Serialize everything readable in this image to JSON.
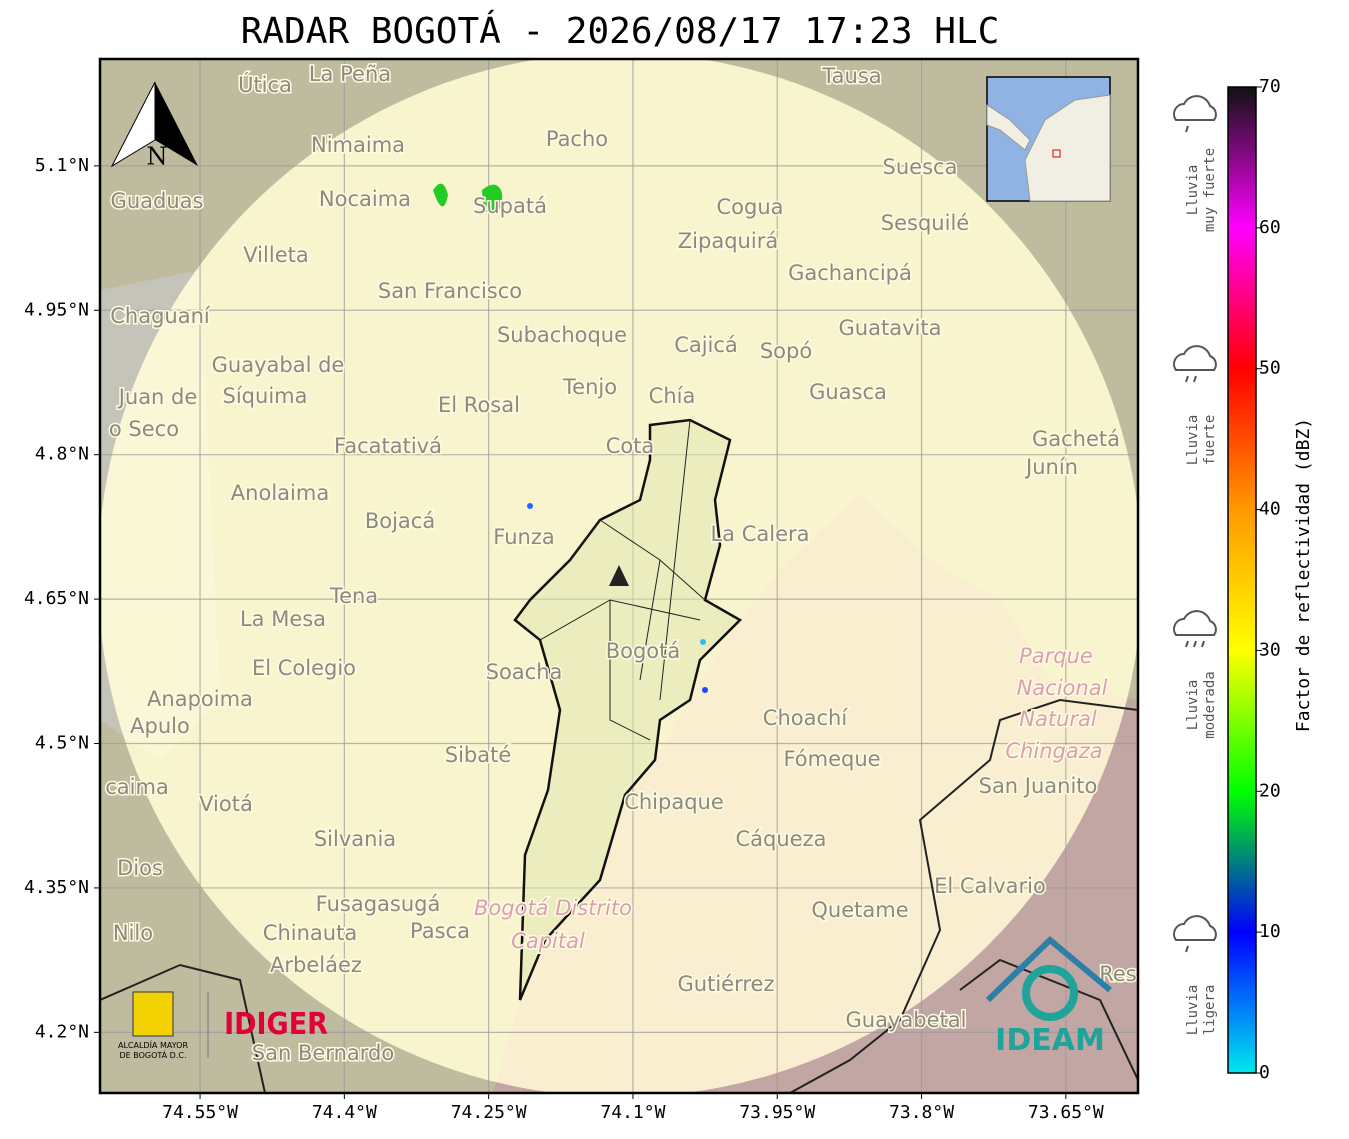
{
  "title": "RADAR BOGOTÁ - 2026/08/17 17:23 HLC",
  "map": {
    "north": "N",
    "xlim": [
      -74.654,
      -73.575
    ],
    "ylim": [
      4.137,
      5.211
    ],
    "xticks": [
      {
        "value": -74.55,
        "label": "74.55°W"
      },
      {
        "value": -74.4,
        "label": "74.4°W"
      },
      {
        "value": -74.25,
        "label": "74.25°W"
      },
      {
        "value": -74.1,
        "label": "74.1°W"
      },
      {
        "value": -73.95,
        "label": "73.95°W"
      },
      {
        "value": -73.8,
        "label": "73.8°W"
      },
      {
        "value": -73.65,
        "label": "73.65°W"
      }
    ],
    "yticks": [
      {
        "value": 5.1,
        "label": "5.1°N"
      },
      {
        "value": 4.95,
        "label": "4.95°N"
      },
      {
        "value": 4.8,
        "label": "4.8°N"
      },
      {
        "value": 4.65,
        "label": "4.65°N"
      },
      {
        "value": 4.5,
        "label": "4.5°N"
      },
      {
        "value": 4.35,
        "label": "4.35°N"
      },
      {
        "value": 4.2,
        "label": "4.2°N"
      }
    ],
    "places": [
      "La Peña",
      "Útica",
      "Tausa",
      "Pacho",
      "Nimaima",
      "Suesca",
      "Guaduas",
      "Nocaima",
      "Supatá",
      "Cogua",
      "Sesquilé",
      "Villeta",
      "Zipaquirá",
      "Gachancipá",
      "San Francisco",
      "Chaguaní",
      "Guatavita",
      "Subachoque",
      "Cajicá",
      "Sopó",
      "Guayabal de",
      "Síquima",
      "Tenjo",
      "Chía",
      "Guasca",
      "Juan de",
      "o Seco",
      "El Rosal",
      "Cota",
      "Gachetá",
      "Facatativá",
      "Junín",
      "Anolaima",
      "Bojacá",
      "Funza",
      "La Calera",
      "Tena",
      "La Mesa",
      "Bogotá",
      "Parque",
      "Nacional",
      "Natural",
      "Chingaza",
      "El Colegio",
      "Soacha",
      "Anapoima",
      "Apulo",
      "Choachí",
      "Sibaté",
      "Fómeque",
      "San Juanito",
      "caima",
      "Viotá",
      "Chipaque",
      "Silvania",
      "Cáqueza",
      "Dios",
      "El Calvario",
      "Fusagasugá",
      "Bogotá Distrito",
      "Quetame",
      "Nilo",
      "Chinauta",
      "Pasca",
      "Capital",
      "Arbeláez",
      "Gutiérrez",
      "Res",
      "Guayabetal",
      "San Bernardo"
    ]
  },
  "colorbar": {
    "label": "Factor de reflectividad (dBZ)",
    "lim": [
      0,
      70
    ],
    "ticks": [
      0,
      10,
      20,
      30,
      40,
      50,
      60,
      70
    ],
    "colors": [
      "#00e8f0",
      "#0000ff",
      "#00ff00",
      "#ffff00",
      "#ff9900",
      "#ff0000",
      "#ff00ff",
      "#111111"
    ]
  },
  "rain_legend": [
    [
      "Lluvia",
      "muy fuerte"
    ],
    [
      "Lluvia",
      "fuerte"
    ],
    [
      "Lluvia",
      "moderada"
    ],
    [
      "Lluvia",
      "ligera"
    ]
  ],
  "logos": {
    "bogota": [
      "ALCALDÍA MAYOR",
      "DE BOGOTÁ D.C."
    ],
    "idiger": "IDIGER",
    "ideam": "IDEAM"
  }
}
